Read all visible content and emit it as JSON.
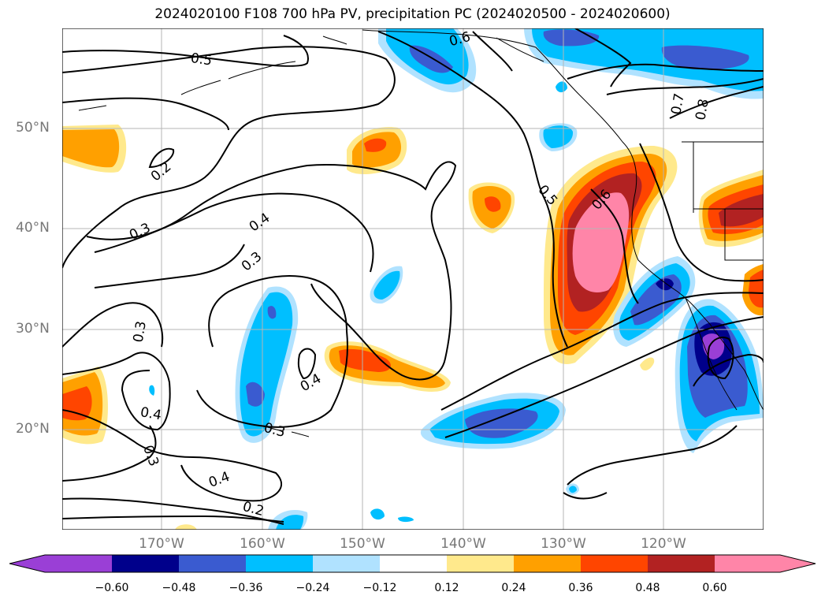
{
  "title": "2024020100 F108 700 hPa PV, precipitation PC (2024020500 - 2024020600)",
  "lat_labels": [
    "50°N",
    "40°N",
    "30°N",
    "20°N"
  ],
  "lon_labels": [
    "170°W",
    "160°W",
    "150°W",
    "140°W",
    "130°W",
    "120°W"
  ],
  "contour_labels": [
    "0.5",
    "0.6",
    "0.2",
    "0.3",
    "0.4",
    "0.3",
    "0.5",
    "0.6",
    "0.3",
    "0.4",
    "0.3",
    "0.4",
    "0.3",
    "0.4",
    "0.2",
    "0.7",
    "0.8"
  ],
  "colorbar": {
    "ticks": [
      "−0.60",
      "−0.48",
      "−0.36",
      "−0.24",
      "−0.12",
      "0.12",
      "0.24",
      "0.36",
      "0.48",
      "0.60"
    ],
    "colors": [
      "#9a3fd6",
      "#00008b",
      "#3a5bd0",
      "#00bfff",
      "#b0e2ff",
      "#ffffff",
      "#ffe98c",
      "#ffa000",
      "#ff4500",
      "#b22222",
      "#ff85a8"
    ]
  }
}
